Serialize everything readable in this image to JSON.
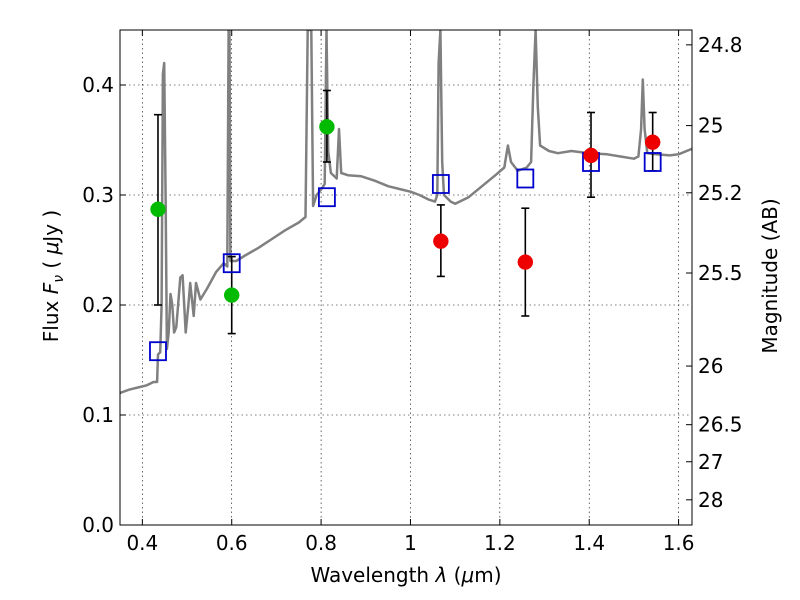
{
  "chart_data": {
    "type": "scatter",
    "xlabel": "Wavelength  λ (μm)",
    "ylabel": "Flux  F_ν  ( μJy )",
    "ylabel_parts": {
      "pre": "Flux  ",
      "italic": "F",
      "sub": "ν",
      "post": "  ( ",
      "mu": "μ",
      "unit": "Jy )"
    },
    "xlabel_parts": {
      "pre": "Wavelength  ",
      "italic": "λ",
      "post": " (",
      "mu": "μ",
      "unit": "m)"
    },
    "ylabel_right": "Magnitude (AB)",
    "xlim": [
      0.35,
      1.63
    ],
    "ylim": [
      0.0,
      0.45
    ],
    "grid": true,
    "x_ticks": [
      {
        "value": 0.4,
        "label": "0.4"
      },
      {
        "value": 0.6,
        "label": "0.6"
      },
      {
        "value": 0.8,
        "label": "0.8"
      },
      {
        "value": 1.0,
        "label": "1"
      },
      {
        "value": 1.2,
        "label": "1.2"
      },
      {
        "value": 1.4,
        "label": "1.4"
      },
      {
        "value": 1.6,
        "label": "1.6"
      }
    ],
    "y_ticks": [
      {
        "value": 0.0,
        "label": "0.0"
      },
      {
        "value": 0.1,
        "label": "0.1"
      },
      {
        "value": 0.2,
        "label": "0.2"
      },
      {
        "value": 0.3,
        "label": "0.3"
      },
      {
        "value": 0.4,
        "label": "0.4"
      }
    ],
    "right_ticks": [
      {
        "label": "24.8",
        "flux": 0.4365
      },
      {
        "label": "25",
        "flux": 0.3631
      },
      {
        "label": "25.2",
        "flux": 0.302
      },
      {
        "label": "25.5",
        "flux": 0.2291
      },
      {
        "label": "26",
        "flux": 0.1445
      },
      {
        "label": "26.5",
        "flux": 0.0912
      },
      {
        "label": "27",
        "flux": 0.0575
      },
      {
        "label": "28",
        "flux": 0.0229
      }
    ],
    "colors": {
      "sed": "#808080",
      "model_points": "#0000cc",
      "obs_green": "#00bb00",
      "obs_red": "#ee0000",
      "errorbar": "#000000"
    },
    "series": [
      {
        "kind": "line",
        "color": "#808080",
        "points": [
          [
            0.35,
            0.12
          ],
          [
            0.37,
            0.123
          ],
          [
            0.39,
            0.125
          ],
          [
            0.41,
            0.127
          ],
          [
            0.425,
            0.13
          ],
          [
            0.433,
            0.13
          ],
          [
            0.435,
            0.155
          ],
          [
            0.44,
            0.157
          ],
          [
            0.443,
            0.2
          ],
          [
            0.446,
            0.41
          ],
          [
            0.449,
            0.42
          ],
          [
            0.452,
            0.3
          ],
          [
            0.455,
            0.16
          ],
          [
            0.459,
            0.175
          ],
          [
            0.463,
            0.21
          ],
          [
            0.467,
            0.2
          ],
          [
            0.471,
            0.175
          ],
          [
            0.476,
            0.18
          ],
          [
            0.48,
            0.2
          ],
          [
            0.485,
            0.225
          ],
          [
            0.49,
            0.227
          ],
          [
            0.497,
            0.175
          ],
          [
            0.503,
            0.2
          ],
          [
            0.507,
            0.22
          ],
          [
            0.515,
            0.19
          ],
          [
            0.52,
            0.22
          ],
          [
            0.53,
            0.205
          ],
          [
            0.545,
            0.215
          ],
          [
            0.565,
            0.23
          ],
          [
            0.582,
            0.238
          ],
          [
            0.59,
            0.235
          ],
          [
            0.593,
            0.45
          ],
          [
            0.595,
            0.45
          ],
          [
            0.597,
            0.24
          ],
          [
            0.61,
            0.24
          ],
          [
            0.63,
            0.245
          ],
          [
            0.66,
            0.252
          ],
          [
            0.69,
            0.26
          ],
          [
            0.72,
            0.268
          ],
          [
            0.75,
            0.275
          ],
          [
            0.765,
            0.28
          ],
          [
            0.77,
            0.45
          ],
          [
            0.778,
            0.45
          ],
          [
            0.782,
            0.29
          ],
          [
            0.79,
            0.3
          ],
          [
            0.8,
            0.305
          ],
          [
            0.808,
            0.31
          ],
          [
            0.812,
            0.45
          ],
          [
            0.816,
            0.34
          ],
          [
            0.822,
            0.32
          ],
          [
            0.835,
            0.315
          ],
          [
            0.84,
            0.36
          ],
          [
            0.845,
            0.32
          ],
          [
            0.86,
            0.318
          ],
          [
            0.89,
            0.317
          ],
          [
            0.92,
            0.313
          ],
          [
            0.95,
            0.308
          ],
          [
            0.98,
            0.305
          ],
          [
            1.0,
            0.303
          ],
          [
            1.02,
            0.3
          ],
          [
            1.04,
            0.296
          ],
          [
            1.055,
            0.294
          ],
          [
            1.06,
            0.3
          ],
          [
            1.063,
            0.42
          ],
          [
            1.067,
            0.45
          ],
          [
            1.071,
            0.33
          ],
          [
            1.075,
            0.3
          ],
          [
            1.09,
            0.294
          ],
          [
            1.1,
            0.292
          ],
          [
            1.13,
            0.298
          ],
          [
            1.16,
            0.308
          ],
          [
            1.19,
            0.318
          ],
          [
            1.21,
            0.325
          ],
          [
            1.218,
            0.345
          ],
          [
            1.225,
            0.33
          ],
          [
            1.24,
            0.322
          ],
          [
            1.26,
            0.325
          ],
          [
            1.27,
            0.33
          ],
          [
            1.275,
            0.4
          ],
          [
            1.28,
            0.45
          ],
          [
            1.285,
            0.38
          ],
          [
            1.29,
            0.345
          ],
          [
            1.31,
            0.34
          ],
          [
            1.33,
            0.338
          ],
          [
            1.36,
            0.34
          ],
          [
            1.4,
            0.338
          ],
          [
            1.44,
            0.337
          ],
          [
            1.47,
            0.335
          ],
          [
            1.5,
            0.333
          ],
          [
            1.51,
            0.335
          ],
          [
            1.516,
            0.36
          ],
          [
            1.52,
            0.405
          ],
          [
            1.524,
            0.36
          ],
          [
            1.53,
            0.338
          ],
          [
            1.55,
            0.337
          ],
          [
            1.58,
            0.336
          ],
          [
            1.6,
            0.337
          ],
          [
            1.63,
            0.342
          ]
        ]
      },
      {
        "kind": "open-square",
        "color": "#0000cc",
        "points": [
          [
            0.435,
            0.158
          ],
          [
            0.6,
            0.238
          ],
          [
            0.813,
            0.298
          ],
          [
            1.068,
            0.31
          ],
          [
            1.257,
            0.315
          ],
          [
            1.404,
            0.33
          ],
          [
            1.542,
            0.33
          ]
        ]
      },
      {
        "kind": "filled-circle-errorbar",
        "color": "#00bb00",
        "points": [
          {
            "x": 0.435,
            "y": 0.287,
            "lo": 0.2,
            "hi": 0.373
          },
          {
            "x": 0.6,
            "y": 0.209,
            "lo": 0.174,
            "hi": 0.244
          },
          {
            "x": 0.813,
            "y": 0.362,
            "lo": 0.33,
            "hi": 0.395
          }
        ]
      },
      {
        "kind": "filled-circle-errorbar",
        "color": "#ee0000",
        "points": [
          {
            "x": 1.068,
            "y": 0.258,
            "lo": 0.226,
            "hi": 0.291
          },
          {
            "x": 1.257,
            "y": 0.239,
            "lo": 0.19,
            "hi": 0.288
          },
          {
            "x": 1.404,
            "y": 0.336,
            "lo": 0.298,
            "hi": 0.375
          },
          {
            "x": 1.542,
            "y": 0.348,
            "lo": 0.322,
            "hi": 0.375
          }
        ]
      }
    ]
  }
}
